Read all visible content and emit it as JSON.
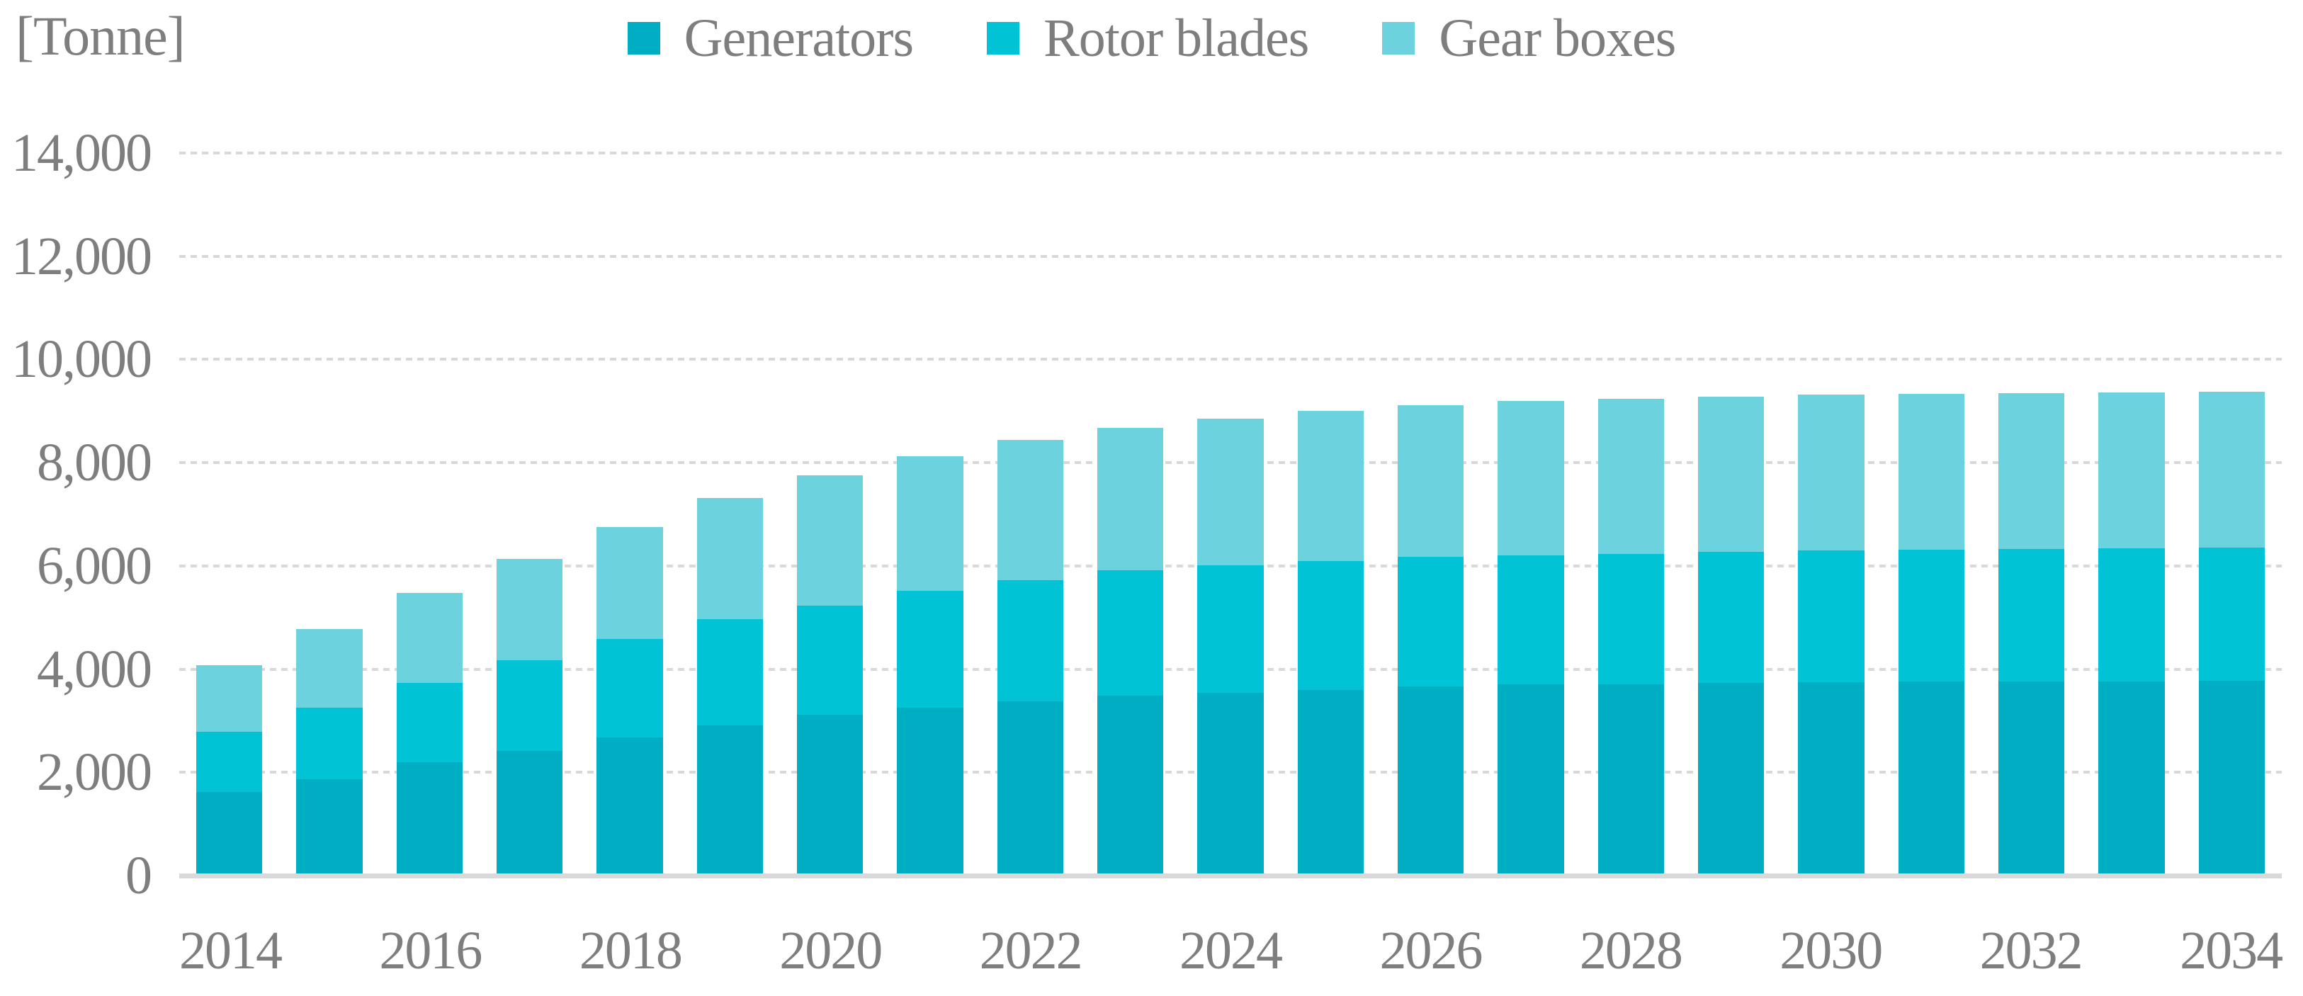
{
  "unit_label": "[Tonne]",
  "colors": {
    "generators": "#00aec3",
    "rotor_blades": "#00c3d6",
    "gear_boxes": "#6bd2de",
    "axis_text": "#7e7e7e",
    "gridline": "#d8d8d8",
    "baseline": "#d9d9d9"
  },
  "chart_data": {
    "type": "bar",
    "stacked": true,
    "title": "",
    "ylabel_unit": "[Tonne]",
    "categories": [
      "2014",
      "2015",
      "2016",
      "2017",
      "2018",
      "2019",
      "2020",
      "2021",
      "2022",
      "2023",
      "2024",
      "2025",
      "2026",
      "2027",
      "2028",
      "2029",
      "2030",
      "2031",
      "2032",
      "2033",
      "2034"
    ],
    "series": [
      {
        "name": "Generators",
        "key": "generators",
        "color": "#00aec3",
        "values": [
          1620,
          1870,
          2190,
          2420,
          2670,
          2910,
          3110,
          3260,
          3380,
          3480,
          3540,
          3600,
          3670,
          3700,
          3710,
          3740,
          3745,
          3760,
          3765,
          3765,
          3780
        ]
      },
      {
        "name": "Rotor blades",
        "key": "rotor-blades",
        "color": "#00c3d6",
        "values": [
          1160,
          1380,
          1550,
          1750,
          1910,
          2060,
          2120,
          2260,
          2340,
          2440,
          2470,
          2490,
          2500,
          2500,
          2525,
          2530,
          2555,
          2555,
          2565,
          2575,
          2570
        ]
      },
      {
        "name": "Gear boxes",
        "key": "gear-boxes",
        "color": "#6bd2de",
        "values": [
          1300,
          1530,
          1740,
          1960,
          2180,
          2340,
          2520,
          2610,
          2720,
          2750,
          2850,
          2920,
          2950,
          2990,
          3005,
          3015,
          3015,
          3015,
          3020,
          3025,
          3025
        ]
      }
    ],
    "totals": [
      4080,
      4780,
      5480,
      6130,
      6760,
      7310,
      7750,
      8130,
      8440,
      8670,
      8860,
      9010,
      9120,
      9190,
      9240,
      9285,
      9315,
      9330,
      9350,
      9365,
      9375
    ],
    "ylim": [
      0,
      14000
    ],
    "ytick_interval": 2000,
    "ytick_labels": [
      "0",
      "2,000",
      "4,000",
      "6,000",
      "8,000",
      "10,000",
      "12,000",
      "14,000"
    ],
    "xtick_labels_shown": [
      "2014",
      "2016",
      "2018",
      "2020",
      "2022",
      "2024",
      "2026",
      "2028",
      "2030",
      "2032",
      "2034"
    ],
    "grid": "horizontal-dotted",
    "legend_position": "top-center"
  }
}
